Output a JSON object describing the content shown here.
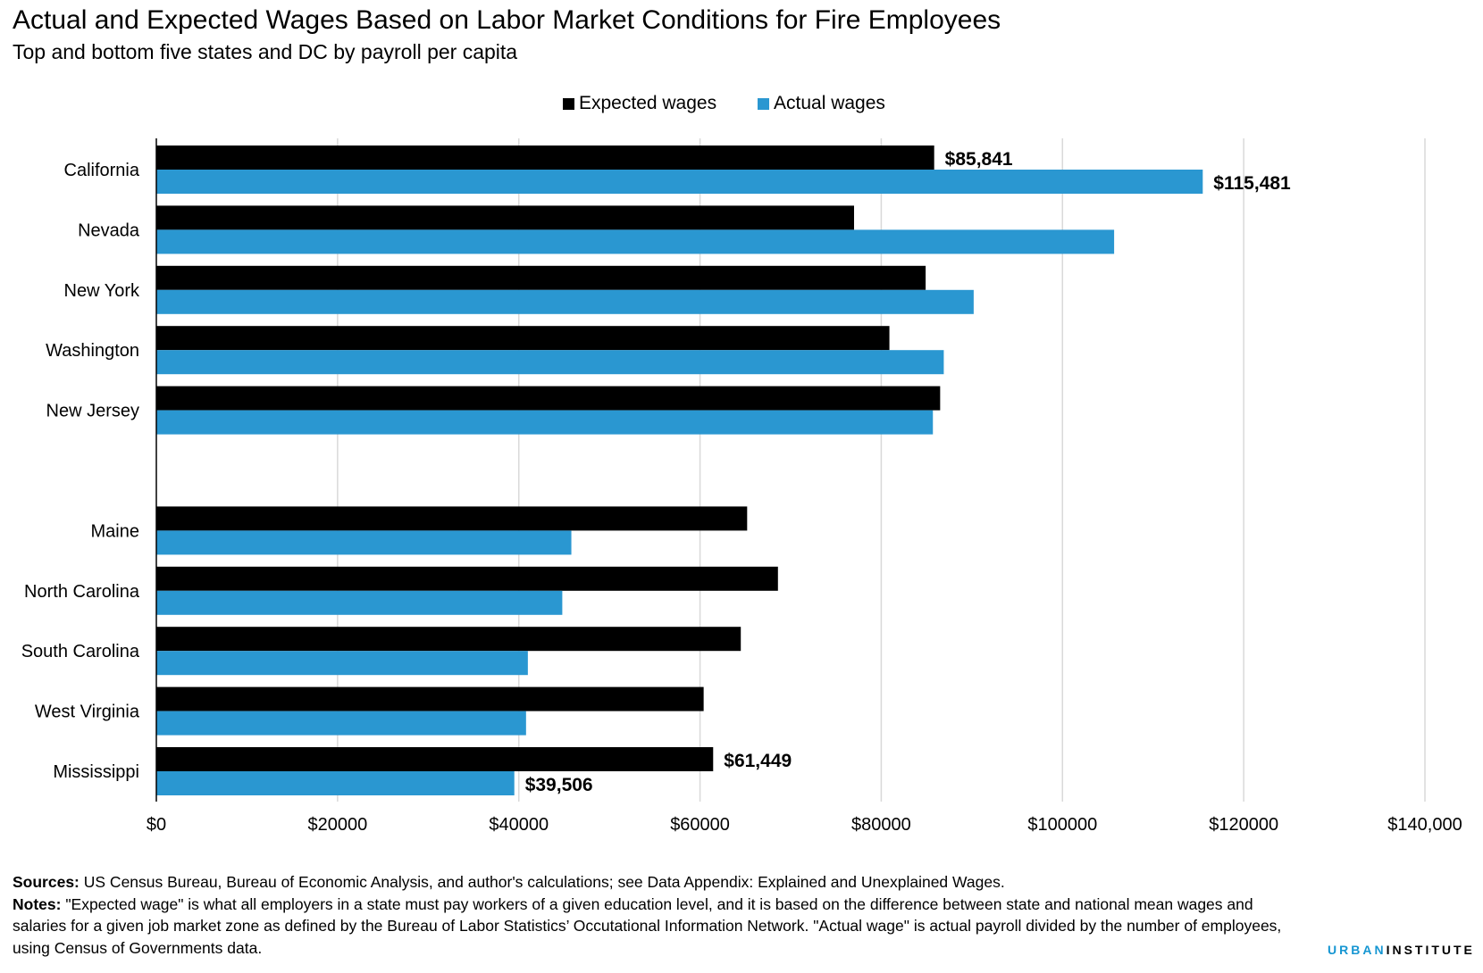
{
  "header": {
    "title": "Actual and Expected Wages Based on Labor Market Conditions for Fire Employees",
    "subtitle": "Top and bottom five states and DC  by payroll per capita"
  },
  "colors": {
    "expected": "#000000",
    "actual": "#2a97d1",
    "grid": "#d9d9d9"
  },
  "chart_data": {
    "type": "bar",
    "orientation": "horizontal",
    "categories": [
      "California",
      "Nevada",
      "New York",
      "Washington",
      "New Jersey",
      "",
      "Maine",
      "North Carolina",
      "South Carolina",
      "West Virginia",
      "Mississippi"
    ],
    "series": [
      {
        "name": "Expected wages",
        "values": [
          85841,
          77000,
          84900,
          80900,
          86500,
          null,
          65200,
          68600,
          64500,
          60400,
          61449
        ]
      },
      {
        "name": "Actual wages",
        "values": [
          115481,
          105700,
          90200,
          86900,
          85700,
          null,
          45800,
          44800,
          41000,
          40800,
          39506
        ]
      }
    ],
    "data_labels": [
      {
        "category": "California",
        "series": "Expected wages",
        "text": "$85,841"
      },
      {
        "category": "California",
        "series": "Actual wages",
        "text": "$115,481"
      },
      {
        "category": "Mississippi",
        "series": "Expected wages",
        "text": "$61,449"
      },
      {
        "category": "Mississippi",
        "series": "Actual wages",
        "text": "$39,506"
      }
    ],
    "x_ticks": [
      0,
      20000,
      40000,
      60000,
      80000,
      100000,
      120000,
      140000
    ],
    "x_tick_labels": [
      "$0",
      "$20000",
      "$40000",
      "$60000",
      "$80000",
      "$100000",
      "$120000",
      "$140,000"
    ],
    "xlim": [
      0,
      140000
    ],
    "grid": "vertical",
    "legend": "top-center"
  },
  "notes": {
    "sources_label": "Sources:",
    "sources_text": " US Census Bureau, Bureau of Economic Analysis, and author's calculations; see Data Appendix: Explained and Unexplained Wages.",
    "notes_label": "Notes:",
    "notes_text": " \"Expected wage\" is what all employers in a state must pay workers of a given education level, and it is based on the difference between state and national mean wages and salaries for a given job market zone as defined by the Bureau of Labor Statistics’ Occutational Information Network. \"Actual wage\" is actual payroll divided by the number of employees, using Census of Governments data."
  },
  "brand": {
    "part1": "URBAN",
    "part2": "INSTITUTE"
  }
}
